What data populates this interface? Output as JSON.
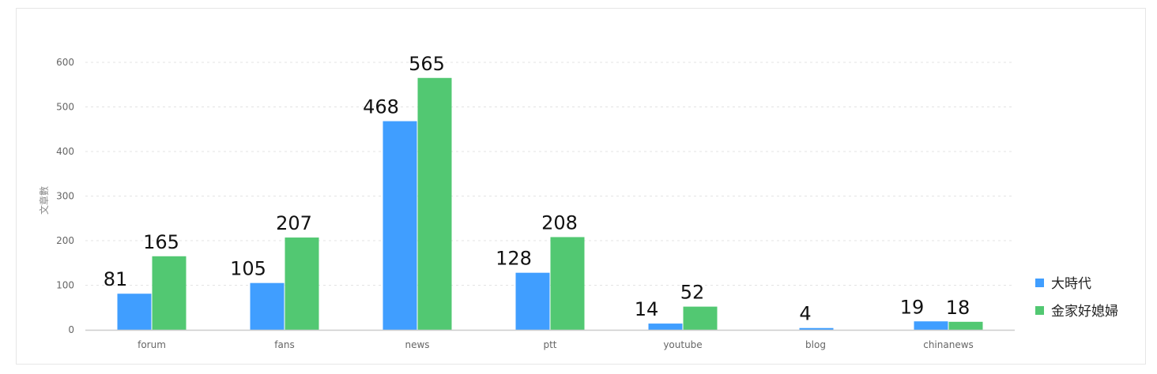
{
  "chart_data": {
    "type": "bar",
    "title": "",
    "xlabel": "",
    "ylabel": "文章數",
    "categories": [
      "forum",
      "fans",
      "news",
      "ptt",
      "youtube",
      "blog",
      "chinanews"
    ],
    "series": [
      {
        "name": "大時代",
        "color": "#409eff",
        "values": [
          81,
          105,
          468,
          128,
          14,
          4,
          19
        ],
        "labels": [
          "81",
          "105",
          "468",
          "128",
          "14",
          "4",
          "19"
        ]
      },
      {
        "name": "金家好媳婦",
        "color": "#52c872",
        "values": [
          165,
          207,
          565,
          208,
          52,
          null,
          18
        ],
        "labels": [
          "165",
          "207",
          "565",
          "208",
          "52",
          "",
          "18"
        ]
      }
    ],
    "ylim": [
      0,
      600
    ],
    "yticks": [
      "0",
      "100",
      "200",
      "300",
      "400",
      "500",
      "600"
    ],
    "grid": true,
    "legend_position": "right"
  }
}
